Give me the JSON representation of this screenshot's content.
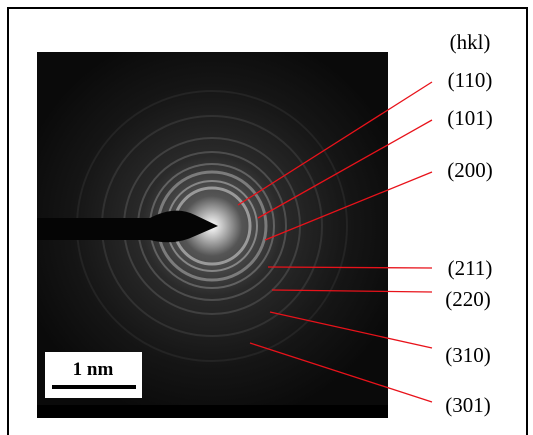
{
  "hkl_header": "(hkl)",
  "planes": [
    "(110)",
    "(101)",
    "(200)",
    "(211)",
    "(220)",
    "(310)",
    "(301)"
  ],
  "scale_bar": "1 nm"
}
